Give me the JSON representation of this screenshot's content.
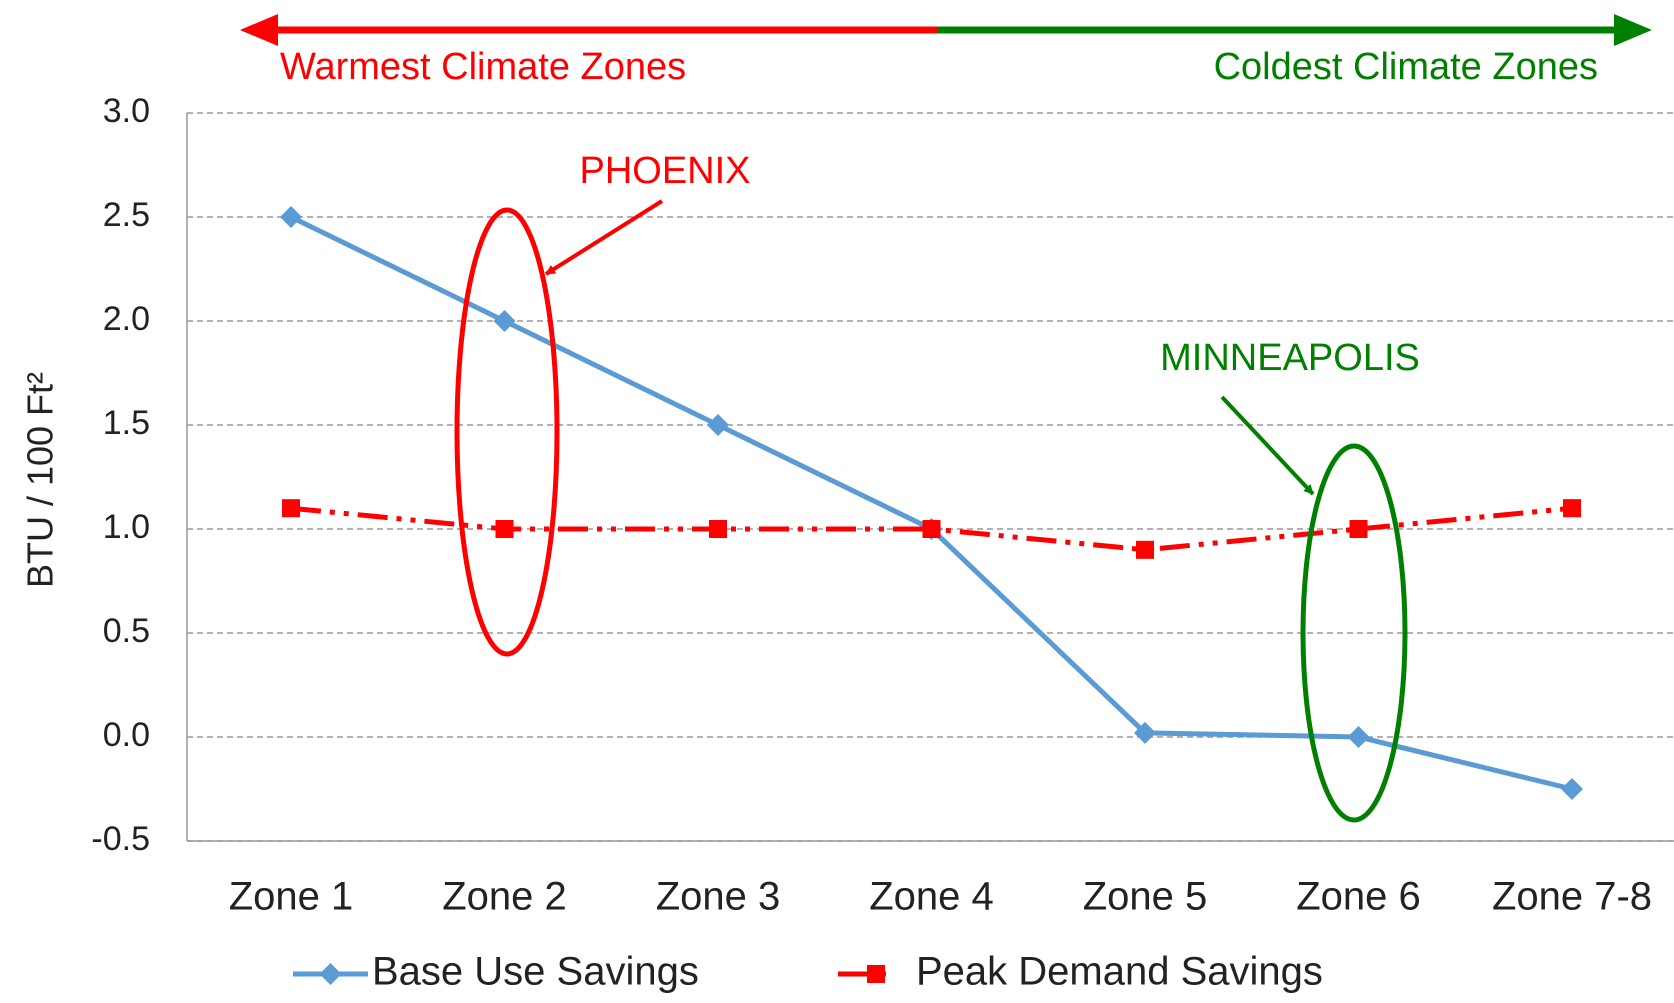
{
  "chart_data": {
    "type": "line",
    "y_label": "BTU / 100 Ft²",
    "annotations": {
      "left": "Warmest Climate Zones",
      "right": "Coldest Climate Zones",
      "phoenix": "PHOENIX",
      "minneapolis": "MINNEAPOLIS"
    },
    "categories": [
      "Zone 1",
      "Zone 2",
      "Zone 3",
      "Zone 4",
      "Zone 5",
      "Zone 6",
      "Zone 7-8"
    ],
    "series": [
      {
        "name": "Base Use Savings",
        "color": "#5b9bd5",
        "values": [
          2.5,
          2.0,
          1.5,
          1.0,
          0.02,
          0.0,
          -0.25
        ]
      },
      {
        "name": "Peak Demand Savings",
        "color": "#ff0000",
        "values": [
          1.1,
          1.0,
          1.0,
          1.0,
          0.9,
          1.0,
          1.1
        ]
      }
    ],
    "ylim": [
      -0.5,
      3.0
    ],
    "yticks": [
      {
        "value": -0.5,
        "label": "-0.5"
      },
      {
        "value": 0,
        "label": "0.0"
      },
      {
        "value": 0.5,
        "label": "0.5"
      },
      {
        "value": 1,
        "label": "1.0"
      },
      {
        "value": 1.5,
        "label": "1.5"
      },
      {
        "value": 2,
        "label": "2.0"
      },
      {
        "value": 2.5,
        "label": "2.5"
      },
      {
        "value": 3,
        "label": "3.0"
      }
    ],
    "grid": true
  }
}
